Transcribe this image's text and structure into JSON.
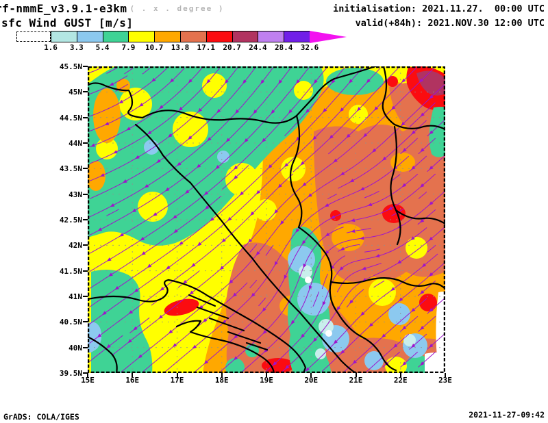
{
  "header": {
    "model_title": "rf-nmmE_v3.9.1-e3km",
    "grid_note": "( . x . degree )",
    "field_title": "sfc Wind GUST [m/s]",
    "initialisation": "initialisation: 2021.11.27.  00:00 UTC",
    "valid": "valid(+84h): 2021.NOV.30 12:00 UTC"
  },
  "colorbar": {
    "tick_labels": [
      "1.6",
      "3.3",
      "5.4",
      "7.9",
      "10.7",
      "13.8",
      "17.1",
      "20.7",
      "24.4",
      "28.4",
      "32.6"
    ],
    "box_colors": [
      "#b3e7e3",
      "#8cc9ef",
      "#3fd395",
      "#ffff00",
      "#ffa800",
      "#e4724e",
      "#fb0c10",
      "#b13360",
      "#bf80f0",
      "#711fe8"
    ],
    "arrow_color": "#f312f0",
    "below_min": "dashed-white-box"
  },
  "map": {
    "lat_labels": [
      "45.5N",
      "45N",
      "44.5N",
      "44N",
      "43.5N",
      "43N",
      "42.5N",
      "42N",
      "41.5N",
      "41N",
      "40.5N",
      "40N",
      "39.5N"
    ],
    "lon_labels": [
      "15E",
      "16E",
      "17E",
      "18E",
      "19E",
      "20E",
      "21E",
      "22E",
      "23E"
    ],
    "lat_range": [
      39.5,
      45.5
    ],
    "lon_range": [
      15,
      23
    ],
    "streamline_color": "#9e14cc",
    "coastline_color": "#000000",
    "grid_color": "#909090"
  },
  "palette": {
    "yellow": "#ffff00",
    "green": "#3fd395",
    "orange": "#ffa800",
    "salmon": "#e4724e",
    "red": "#fb0c10",
    "maroon": "#b13360",
    "light_blue": "#8cc9ef",
    "pale_cyan": "#c9eeec",
    "white": "#ffffff",
    "orchid": "#bf80f0",
    "violet": "#711fe8"
  },
  "footer": {
    "left": "GrADS: COLA/IGES",
    "right": "2021-11-27-09:42"
  }
}
